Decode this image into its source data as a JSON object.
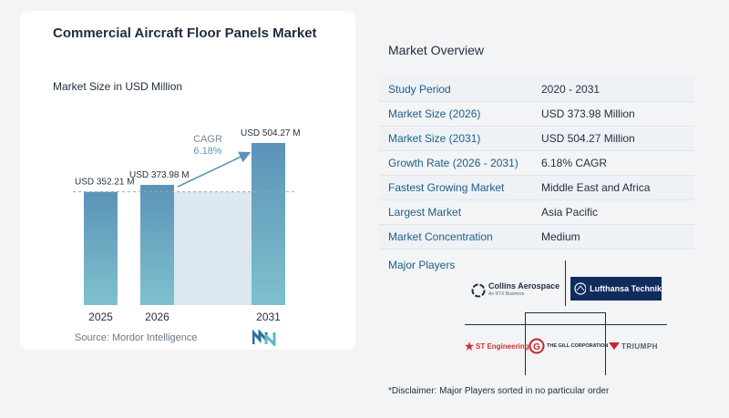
{
  "chart_data": {
    "type": "bar",
    "title": "Commercial Aircraft Floor Panels Market",
    "subtitle": "Market Size in USD Million",
    "categories": [
      "2025",
      "2026",
      "2031"
    ],
    "values": [
      352.21,
      373.98,
      504.27
    ],
    "data_labels": [
      "USD 352.21 M",
      "USD 373.98 M",
      "USD 504.27 M"
    ],
    "cagr_label": "CAGR",
    "cagr_value": "6.18%",
    "colors": {
      "bar_top": "#5b93b8",
      "bar_bottom": "#7ec1cd",
      "band": "#dde7ef",
      "arrow": "#5b93b8"
    }
  },
  "source": "Source:  Mordor Intelligence",
  "overview": {
    "title": "Market Overview",
    "rows": [
      {
        "label": "Study Period",
        "value": "2020 - 2031"
      },
      {
        "label": "Market Size (2026)",
        "value": "USD 373.98 Million"
      },
      {
        "label": "Market Size (2031)",
        "value": "USD 504.27 Million"
      },
      {
        "label": "Growth Rate (2026 - 2031)",
        "value": "6.18% CAGR"
      },
      {
        "label": "Fastest Growing Market",
        "value": "Middle East and Africa"
      },
      {
        "label": "Largest Market",
        "value": "Asia Pacific"
      },
      {
        "label": "Market Concentration",
        "value": "Medium"
      }
    ]
  },
  "players": {
    "title": "Major Players",
    "logos": {
      "collins": "Collins Aerospace",
      "collins_sub": "An RTX Business",
      "lufthansa": "Lufthansa Technik",
      "st": "ST Engineering",
      "gill": "THE GILL CORPORATION",
      "triumph": "TRIUMPH"
    }
  },
  "disclaimer": "*Disclaimer: Major Players sorted in no particular order"
}
